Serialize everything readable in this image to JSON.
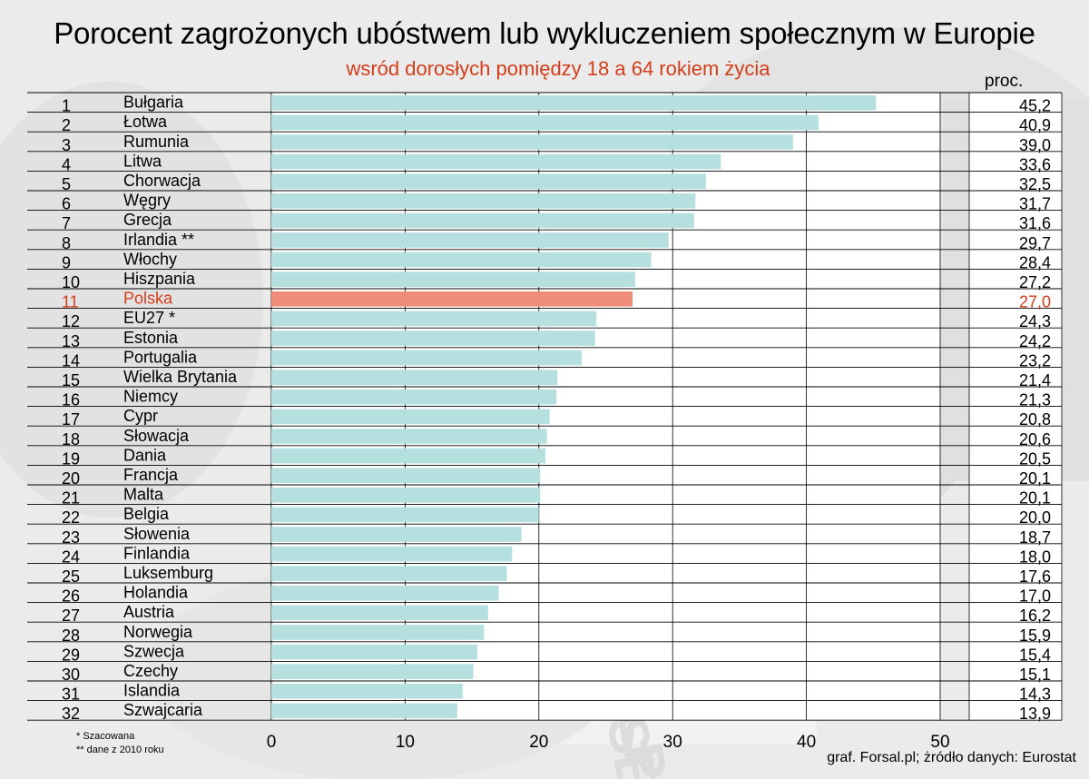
{
  "header": {
    "title": "Porocent zagrożonych ubóstwem lub wykluczeniem społecznym w Europie",
    "subtitle": "wsród dorosłych pomiędzy 18 a 64 rokiem życia",
    "unit": "proc."
  },
  "footer": {
    "note1": "* Szacowana",
    "note2": "** dane z 2010 roku",
    "source": "graf. Forsal.pl; żródło danych: Eurostat"
  },
  "colors": {
    "bar": "#b6dfe0",
    "highlight_bar": "#ef8c7a",
    "highlight_text": "#d43d1a"
  },
  "chart_data": {
    "type": "bar",
    "orientation": "horizontal",
    "categories": [
      "Bułgaria",
      "Łotwa",
      "Rumunia",
      "Litwa",
      "Chorwacja",
      "Węgry",
      "Grecja",
      "Irlandia **",
      "Włochy",
      "Hiszpania",
      "Polska",
      "EU27 *",
      "Estonia",
      "Portugalia",
      "Wielka Brytania",
      "Niemcy",
      "Cypr",
      "Słowacja",
      "Dania",
      "Francja",
      "Malta",
      "Belgia",
      "Słowenia",
      "Finlandia",
      "Luksemburg",
      "Holandia",
      "Austria",
      "Norwegia",
      "Szwecja",
      "Czechy",
      "Islandia",
      "Szwajcaria"
    ],
    "ranks": [
      "1",
      "2",
      "3",
      "4",
      "5",
      "6",
      "7",
      "8",
      "9",
      "10",
      "11",
      "12",
      "13",
      "14",
      "15",
      "16",
      "17",
      "18",
      "19",
      "20",
      "21",
      "22",
      "23",
      "24",
      "25",
      "26",
      "27",
      "28",
      "29",
      "30",
      "31",
      "32"
    ],
    "values": [
      45.2,
      40.9,
      39.0,
      33.6,
      32.5,
      31.7,
      31.6,
      29.7,
      28.4,
      27.2,
      27.0,
      24.3,
      24.2,
      23.2,
      21.4,
      21.3,
      20.8,
      20.6,
      20.5,
      20.1,
      20.1,
      20.0,
      18.7,
      18.0,
      17.6,
      17.0,
      16.2,
      15.9,
      15.4,
      15.1,
      14.3,
      13.9
    ],
    "value_labels": [
      "45,2",
      "40,9",
      "39,0",
      "33,6",
      "32,5",
      "31,7",
      "31,6",
      "29,7",
      "28,4",
      "27,2",
      "27,0",
      "24,3",
      "24,2",
      "23,2",
      "21,4",
      "21,3",
      "20,8",
      "20,6",
      "20,5",
      "20,1",
      "20,1",
      "20,0",
      "18,7",
      "18,0",
      "17,6",
      "17,0",
      "16,2",
      "15,9",
      "15,4",
      "15,1",
      "14,3",
      "13,9"
    ],
    "highlight": "Polska",
    "xlim": [
      0,
      50
    ],
    "xticks": [
      "0",
      "10",
      "20",
      "30",
      "40",
      "50"
    ],
    "grid": true
  }
}
